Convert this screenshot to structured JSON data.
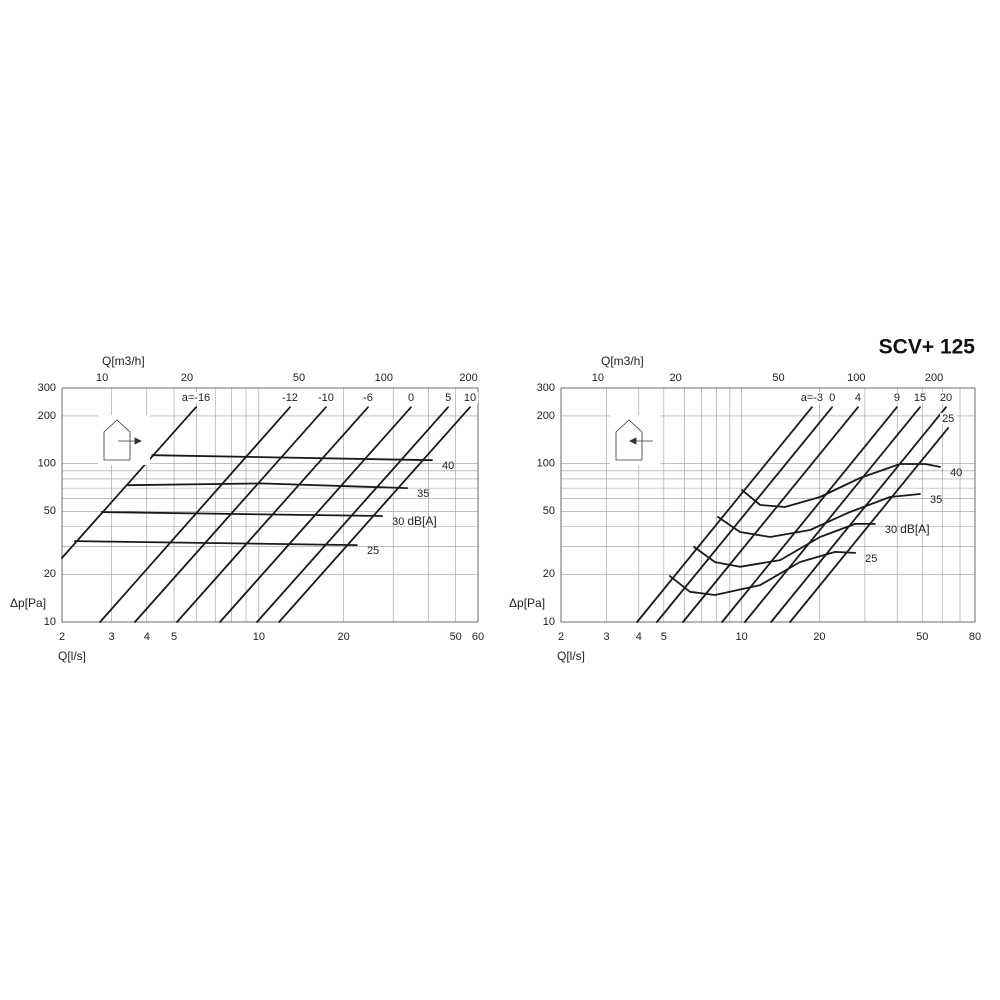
{
  "title": "SCV+ 125",
  "chart_data": [
    {
      "type": "line",
      "log_x": true,
      "log_y": true,
      "color": "#1a1a1a",
      "x_label": "Q[l/s]",
      "x2_label": "Q[m3/h]",
      "y_label": "Δp[Pa]",
      "unit_label": "dB[A]",
      "xlim": [
        2,
        60
      ],
      "x2lim": [
        7.2,
        216
      ],
      "ylim": [
        10,
        300
      ],
      "xticks": [
        2,
        3,
        4,
        5,
        10,
        20,
        50,
        60
      ],
      "x2ticks": [
        10,
        20,
        50,
        100,
        200
      ],
      "yticks": [
        10,
        20,
        50,
        100,
        200,
        300
      ],
      "xminor": [
        2,
        3,
        4,
        5,
        6,
        7,
        8,
        9,
        10,
        20,
        30,
        40,
        50,
        60
      ],
      "yminor": [
        10,
        20,
        30,
        40,
        50,
        60,
        70,
        80,
        90,
        100,
        200,
        300
      ],
      "series": [
        {
          "name": "a=-16",
          "x": [
            2,
            5.98
          ],
          "values": [
            25.4,
            227
          ]
        },
        {
          "name": "-12",
          "x": [
            2.73,
            12.9
          ],
          "values": [
            10,
            227
          ]
        },
        {
          "name": "-10",
          "x": [
            3.63,
            17.3
          ],
          "values": [
            10,
            227
          ]
        },
        {
          "name": "-6",
          "x": [
            5.12,
            24.4
          ],
          "values": [
            10,
            227
          ]
        },
        {
          "name": "0",
          "x": [
            7.28,
            34.7
          ],
          "values": [
            10,
            227
          ]
        },
        {
          "name": "5",
          "x": [
            9.85,
            47.0
          ],
          "values": [
            10,
            227
          ]
        },
        {
          "name": "10",
          "x": [
            11.8,
            56.2
          ],
          "values": [
            10,
            227
          ]
        }
      ],
      "noise_series": [
        {
          "name": "40",
          "x": [
            4.18,
            41.2
          ],
          "values": [
            113,
            105
          ]
        },
        {
          "name": "35",
          "x": [
            3.43,
            10.1,
            33.6
          ],
          "values": [
            73,
            75,
            70
          ]
        },
        {
          "name": "30",
          "x": [
            2.77,
            27.4
          ],
          "values": [
            49.4,
            46.7
          ]
        },
        {
          "name": "25",
          "x": [
            2.22,
            22.3
          ],
          "values": [
            32.4,
            30.6
          ]
        }
      ]
    },
    {
      "type": "line",
      "log_x": true,
      "log_y": true,
      "color": "#1a1a1a",
      "x_label": "Q[l/s]",
      "x2_label": "Q[m3/h]",
      "y_label": "Δp[Pa]",
      "unit_label": "dB[A]",
      "xlim": [
        2,
        80
      ],
      "x2lim": [
        7.2,
        288
      ],
      "ylim": [
        10,
        300
      ],
      "xticks": [
        2,
        3,
        4,
        5,
        10,
        20,
        50,
        80
      ],
      "x2ticks": [
        10,
        20,
        50,
        100,
        200
      ],
      "yticks": [
        10,
        20,
        50,
        100,
        200,
        300
      ],
      "xminor": [
        2,
        3,
        4,
        5,
        6,
        7,
        8,
        9,
        10,
        20,
        30,
        40,
        50,
        60,
        70,
        80
      ],
      "yminor": [
        10,
        20,
        30,
        40,
        50,
        60,
        70,
        80,
        90,
        100,
        200,
        300
      ],
      "series": [
        {
          "name": "a=-3",
          "x": [
            3.94,
            18.7
          ],
          "values": [
            10,
            227
          ]
        },
        {
          "name": "0",
          "x": [
            4.7,
            22.4
          ],
          "values": [
            10,
            227
          ]
        },
        {
          "name": "4",
          "x": [
            5.93,
            28.2
          ],
          "values": [
            10,
            227
          ]
        },
        {
          "name": "9",
          "x": [
            8.4,
            39.9
          ],
          "values": [
            10,
            227
          ]
        },
        {
          "name": "15",
          "x": [
            10.3,
            49.0
          ],
          "values": [
            10,
            227
          ]
        },
        {
          "name": "20",
          "x": [
            13.0,
            61.8
          ],
          "values": [
            10,
            227
          ]
        },
        {
          "name": "25",
          "x": [
            15.4,
            63.0
          ],
          "values": [
            10,
            168
          ]
        }
      ],
      "noise_series": [
        {
          "name": "40",
          "x": [
            10.03,
            11.8,
            14.7,
            20.1,
            28.7,
            41.0,
            51.3,
            58.6
          ],
          "values": [
            68,
            54.8,
            53.2,
            61.5,
            81.1,
            99.4,
            99.4,
            95.3
          ]
        },
        {
          "name": "35",
          "x": [
            8.1,
            9.86,
            12.9,
            18.4,
            26.2,
            37.5,
            49.0
          ],
          "values": [
            46.0,
            37.0,
            34.4,
            38.1,
            49.4,
            61.5,
            64.3
          ]
        },
        {
          "name": "30",
          "x": [
            6.54,
            7.89,
            9.86,
            14.1,
            20.1,
            27.5,
            32.8
          ],
          "values": [
            29.8,
            23.9,
            22.3,
            24.6,
            34.4,
            41.6,
            41.6
          ]
        },
        {
          "name": "25",
          "x": [
            5.28,
            6.31,
            7.89,
            11.8,
            16.8,
            23.0,
            27.5
          ],
          "values": [
            19.5,
            15.5,
            14.8,
            17.1,
            23.9,
            27.7,
            27.3
          ]
        }
      ]
    }
  ]
}
